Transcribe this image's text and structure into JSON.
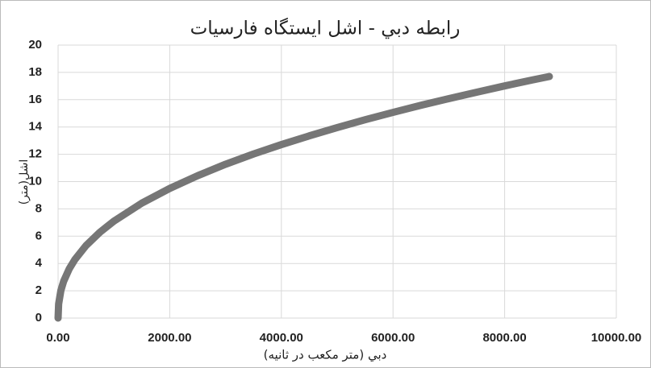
{
  "chart_data": {
    "type": "line",
    "title": "رابطه دبي - اشل ايستگاه فارسيات",
    "x_label": "دبي (متر مكعب در ثانيه)",
    "y_label": "اشل(متر)",
    "x": [
      0,
      10,
      50,
      100,
      200,
      300,
      500,
      750,
      1000,
      1500,
      2000,
      2500,
      3000,
      3500,
      4000,
      4500,
      5000,
      5500,
      6000,
      6500,
      7000,
      7500,
      8000,
      8500,
      8800
    ],
    "values": [
      0,
      1.03,
      2.02,
      2.7,
      3.61,
      4.28,
      5.31,
      6.29,
      7.1,
      8.42,
      9.5,
      10.43,
      11.27,
      12.02,
      12.71,
      13.35,
      13.96,
      14.53,
      15.07,
      15.59,
      16.08,
      16.55,
      17.01,
      17.45,
      17.7
    ],
    "color": "#767676",
    "xlim": [
      0,
      10000
    ],
    "xticks": [
      {
        "value": 0,
        "label": "0.00"
      },
      {
        "value": 2000,
        "label": "2000.00"
      },
      {
        "value": 4000,
        "label": "4000.00"
      },
      {
        "value": 6000,
        "label": "6000.00"
      },
      {
        "value": 8000,
        "label": "8000.00"
      },
      {
        "value": 10000,
        "label": "10000.00"
      }
    ],
    "ylim": [
      0,
      20
    ],
    "yticks": [
      0,
      2,
      4,
      6,
      8,
      10,
      12,
      14,
      16,
      18,
      20
    ],
    "grid": true
  }
}
